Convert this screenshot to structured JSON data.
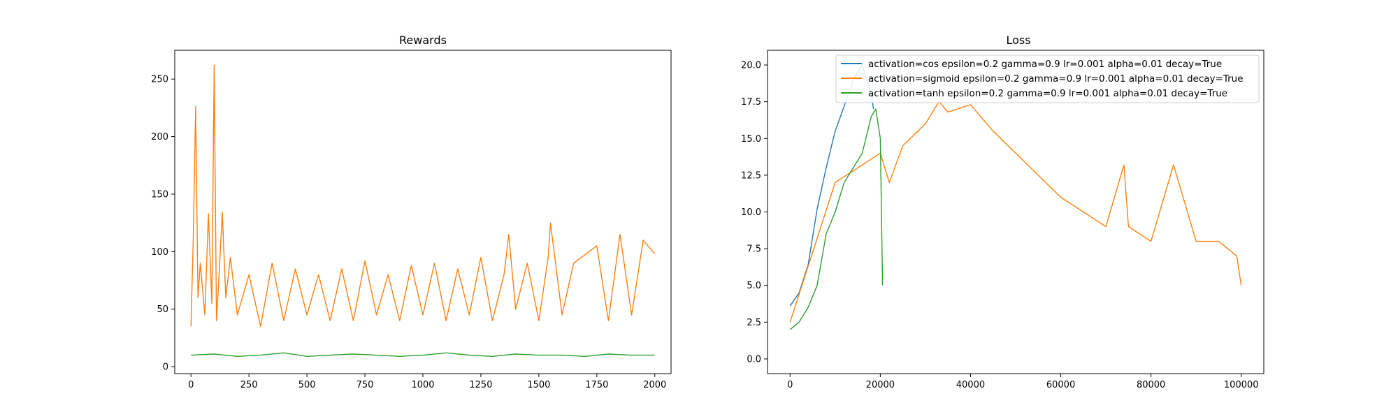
{
  "chart_data": [
    {
      "type": "line",
      "title": "Rewards",
      "xlabel": "",
      "ylabel": "",
      "xlim": [
        -70,
        2070
      ],
      "ylim": [
        -6,
        275
      ],
      "xticks": [
        0,
        250,
        500,
        750,
        1000,
        1250,
        1500,
        1750,
        2000
      ],
      "yticks": [
        0,
        50,
        100,
        150,
        200,
        250
      ],
      "grid": false,
      "series": [
        {
          "color": "#ff7f0e",
          "x": [
            0,
            10,
            20,
            30,
            40,
            60,
            75,
            90,
            100,
            110,
            120,
            135,
            150,
            170,
            200,
            250,
            300,
            350,
            400,
            450,
            500,
            550,
            600,
            650,
            700,
            750,
            800,
            850,
            900,
            950,
            1000,
            1050,
            1100,
            1150,
            1200,
            1250,
            1300,
            1350,
            1370,
            1400,
            1450,
            1500,
            1540,
            1550,
            1600,
            1650,
            1750,
            1800,
            1850,
            1900,
            1950,
            2000
          ],
          "values": [
            35,
            112,
            226,
            60,
            90,
            45,
            133,
            55,
            262,
            40,
            75,
            134,
            60,
            95,
            45,
            80,
            35,
            90,
            40,
            85,
            45,
            80,
            40,
            85,
            40,
            92,
            45,
            80,
            40,
            88,
            45,
            90,
            40,
            85,
            45,
            95,
            40,
            80,
            115,
            50,
            90,
            40,
            95,
            125,
            45,
            90,
            105,
            40,
            115,
            45,
            110,
            98
          ]
        },
        {
          "color": "#2ca02c",
          "x": [
            0,
            100,
            200,
            300,
            400,
            500,
            600,
            700,
            800,
            900,
            1000,
            1100,
            1200,
            1300,
            1400,
            1500,
            1600,
            1700,
            1800,
            1900,
            2000
          ],
          "values": [
            10,
            11,
            9,
            10,
            12,
            9,
            10,
            11,
            10,
            9,
            10,
            12,
            10,
            9,
            11,
            10,
            10,
            9,
            11,
            10,
            10
          ]
        }
      ]
    },
    {
      "type": "line",
      "title": "Loss",
      "xlabel": "",
      "ylabel": "",
      "xlim": [
        -5000,
        105000
      ],
      "ylim": [
        -1,
        21
      ],
      "xticks": [
        0,
        20000,
        40000,
        60000,
        80000,
        100000
      ],
      "yticks": [
        0.0,
        2.5,
        5.0,
        7.5,
        10.0,
        12.5,
        15.0,
        17.5,
        20.0
      ],
      "grid": false,
      "legend": "top-right",
      "series": [
        {
          "name": "activation=cos epsilon=0.2 gamma=0.9 lr=0.001 alpha=0.01 decay=True",
          "color": "#1f77b4",
          "x": [
            0,
            2000,
            4000,
            6000,
            8000,
            10000,
            12000,
            14000,
            16000,
            18000,
            18500
          ],
          "values": [
            3.6,
            4.5,
            6.4,
            10.2,
            13.0,
            15.5,
            17.2,
            19.0,
            20.0,
            18.0,
            17.0
          ]
        },
        {
          "name": "activation=sigmoid epsilon=0.2 gamma=0.9 lr=0.001 alpha=0.01 decay=True",
          "color": "#ff7f0e",
          "x": [
            0,
            10000,
            20000,
            22000,
            25000,
            30000,
            33000,
            35000,
            40000,
            45000,
            50000,
            55000,
            60000,
            65000,
            70000,
            74000,
            75000,
            80000,
            85000,
            90000,
            95000,
            99000,
            100000
          ],
          "values": [
            2.5,
            12.0,
            14.0,
            12.0,
            14.5,
            16.0,
            17.5,
            16.8,
            17.3,
            15.5,
            14.0,
            12.5,
            11.0,
            10.0,
            9.0,
            13.2,
            9.0,
            8.0,
            13.2,
            8.0,
            8.0,
            7.0,
            5.0
          ]
        },
        {
          "name": "activation=tanh epsilon=0.2 gamma=0.9 lr=0.001 alpha=0.01 decay=True",
          "color": "#2ca02c",
          "x": [
            0,
            2000,
            4000,
            6000,
            8000,
            10000,
            12000,
            14000,
            16000,
            18000,
            19000,
            20000,
            20500
          ],
          "values": [
            2.0,
            2.5,
            3.5,
            5.0,
            8.5,
            10.0,
            12.0,
            13.0,
            14.0,
            16.5,
            17.0,
            15.0,
            5.0
          ]
        }
      ]
    }
  ]
}
